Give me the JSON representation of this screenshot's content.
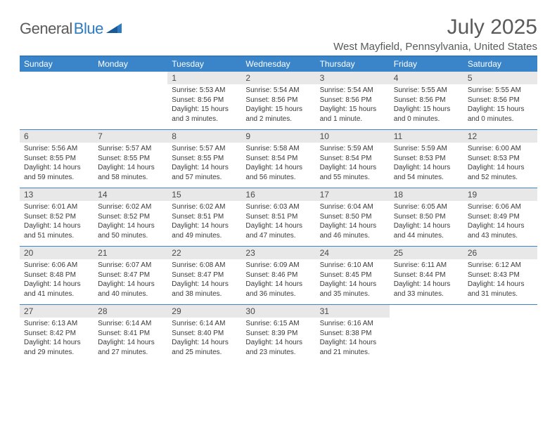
{
  "brand": {
    "text1": "General",
    "text2": "Blue"
  },
  "title": "July 2025",
  "location": "West Mayfield, Pennsylvania, United States",
  "colors": {
    "header_bg": "#3a85c9",
    "header_border": "#2f7bc1",
    "daynum_bg": "#e8e8e8",
    "text": "#5a5a5a"
  },
  "typography": {
    "title_fontsize": 30,
    "location_fontsize": 15,
    "dayheader_fontsize": 12,
    "body_fontsize": 10
  },
  "day_headers": [
    "Sunday",
    "Monday",
    "Tuesday",
    "Wednesday",
    "Thursday",
    "Friday",
    "Saturday"
  ],
  "weeks": [
    [
      {
        "n": "",
        "lines": []
      },
      {
        "n": "",
        "lines": []
      },
      {
        "n": "1",
        "lines": [
          "Sunrise: 5:53 AM",
          "Sunset: 8:56 PM",
          "Daylight: 15 hours",
          "and 3 minutes."
        ]
      },
      {
        "n": "2",
        "lines": [
          "Sunrise: 5:54 AM",
          "Sunset: 8:56 PM",
          "Daylight: 15 hours",
          "and 2 minutes."
        ]
      },
      {
        "n": "3",
        "lines": [
          "Sunrise: 5:54 AM",
          "Sunset: 8:56 PM",
          "Daylight: 15 hours",
          "and 1 minute."
        ]
      },
      {
        "n": "4",
        "lines": [
          "Sunrise: 5:55 AM",
          "Sunset: 8:56 PM",
          "Daylight: 15 hours",
          "and 0 minutes."
        ]
      },
      {
        "n": "5",
        "lines": [
          "Sunrise: 5:55 AM",
          "Sunset: 8:56 PM",
          "Daylight: 15 hours",
          "and 0 minutes."
        ]
      }
    ],
    [
      {
        "n": "6",
        "lines": [
          "Sunrise: 5:56 AM",
          "Sunset: 8:55 PM",
          "Daylight: 14 hours",
          "and 59 minutes."
        ]
      },
      {
        "n": "7",
        "lines": [
          "Sunrise: 5:57 AM",
          "Sunset: 8:55 PM",
          "Daylight: 14 hours",
          "and 58 minutes."
        ]
      },
      {
        "n": "8",
        "lines": [
          "Sunrise: 5:57 AM",
          "Sunset: 8:55 PM",
          "Daylight: 14 hours",
          "and 57 minutes."
        ]
      },
      {
        "n": "9",
        "lines": [
          "Sunrise: 5:58 AM",
          "Sunset: 8:54 PM",
          "Daylight: 14 hours",
          "and 56 minutes."
        ]
      },
      {
        "n": "10",
        "lines": [
          "Sunrise: 5:59 AM",
          "Sunset: 8:54 PM",
          "Daylight: 14 hours",
          "and 55 minutes."
        ]
      },
      {
        "n": "11",
        "lines": [
          "Sunrise: 5:59 AM",
          "Sunset: 8:53 PM",
          "Daylight: 14 hours",
          "and 54 minutes."
        ]
      },
      {
        "n": "12",
        "lines": [
          "Sunrise: 6:00 AM",
          "Sunset: 8:53 PM",
          "Daylight: 14 hours",
          "and 52 minutes."
        ]
      }
    ],
    [
      {
        "n": "13",
        "lines": [
          "Sunrise: 6:01 AM",
          "Sunset: 8:52 PM",
          "Daylight: 14 hours",
          "and 51 minutes."
        ]
      },
      {
        "n": "14",
        "lines": [
          "Sunrise: 6:02 AM",
          "Sunset: 8:52 PM",
          "Daylight: 14 hours",
          "and 50 minutes."
        ]
      },
      {
        "n": "15",
        "lines": [
          "Sunrise: 6:02 AM",
          "Sunset: 8:51 PM",
          "Daylight: 14 hours",
          "and 49 minutes."
        ]
      },
      {
        "n": "16",
        "lines": [
          "Sunrise: 6:03 AM",
          "Sunset: 8:51 PM",
          "Daylight: 14 hours",
          "and 47 minutes."
        ]
      },
      {
        "n": "17",
        "lines": [
          "Sunrise: 6:04 AM",
          "Sunset: 8:50 PM",
          "Daylight: 14 hours",
          "and 46 minutes."
        ]
      },
      {
        "n": "18",
        "lines": [
          "Sunrise: 6:05 AM",
          "Sunset: 8:50 PM",
          "Daylight: 14 hours",
          "and 44 minutes."
        ]
      },
      {
        "n": "19",
        "lines": [
          "Sunrise: 6:06 AM",
          "Sunset: 8:49 PM",
          "Daylight: 14 hours",
          "and 43 minutes."
        ]
      }
    ],
    [
      {
        "n": "20",
        "lines": [
          "Sunrise: 6:06 AM",
          "Sunset: 8:48 PM",
          "Daylight: 14 hours",
          "and 41 minutes."
        ]
      },
      {
        "n": "21",
        "lines": [
          "Sunrise: 6:07 AM",
          "Sunset: 8:47 PM",
          "Daylight: 14 hours",
          "and 40 minutes."
        ]
      },
      {
        "n": "22",
        "lines": [
          "Sunrise: 6:08 AM",
          "Sunset: 8:47 PM",
          "Daylight: 14 hours",
          "and 38 minutes."
        ]
      },
      {
        "n": "23",
        "lines": [
          "Sunrise: 6:09 AM",
          "Sunset: 8:46 PM",
          "Daylight: 14 hours",
          "and 36 minutes."
        ]
      },
      {
        "n": "24",
        "lines": [
          "Sunrise: 6:10 AM",
          "Sunset: 8:45 PM",
          "Daylight: 14 hours",
          "and 35 minutes."
        ]
      },
      {
        "n": "25",
        "lines": [
          "Sunrise: 6:11 AM",
          "Sunset: 8:44 PM",
          "Daylight: 14 hours",
          "and 33 minutes."
        ]
      },
      {
        "n": "26",
        "lines": [
          "Sunrise: 6:12 AM",
          "Sunset: 8:43 PM",
          "Daylight: 14 hours",
          "and 31 minutes."
        ]
      }
    ],
    [
      {
        "n": "27",
        "lines": [
          "Sunrise: 6:13 AM",
          "Sunset: 8:42 PM",
          "Daylight: 14 hours",
          "and 29 minutes."
        ]
      },
      {
        "n": "28",
        "lines": [
          "Sunrise: 6:14 AM",
          "Sunset: 8:41 PM",
          "Daylight: 14 hours",
          "and 27 minutes."
        ]
      },
      {
        "n": "29",
        "lines": [
          "Sunrise: 6:14 AM",
          "Sunset: 8:40 PM",
          "Daylight: 14 hours",
          "and 25 minutes."
        ]
      },
      {
        "n": "30",
        "lines": [
          "Sunrise: 6:15 AM",
          "Sunset: 8:39 PM",
          "Daylight: 14 hours",
          "and 23 minutes."
        ]
      },
      {
        "n": "31",
        "lines": [
          "Sunrise: 6:16 AM",
          "Sunset: 8:38 PM",
          "Daylight: 14 hours",
          "and 21 minutes."
        ]
      },
      {
        "n": "",
        "lines": []
      },
      {
        "n": "",
        "lines": []
      }
    ]
  ]
}
